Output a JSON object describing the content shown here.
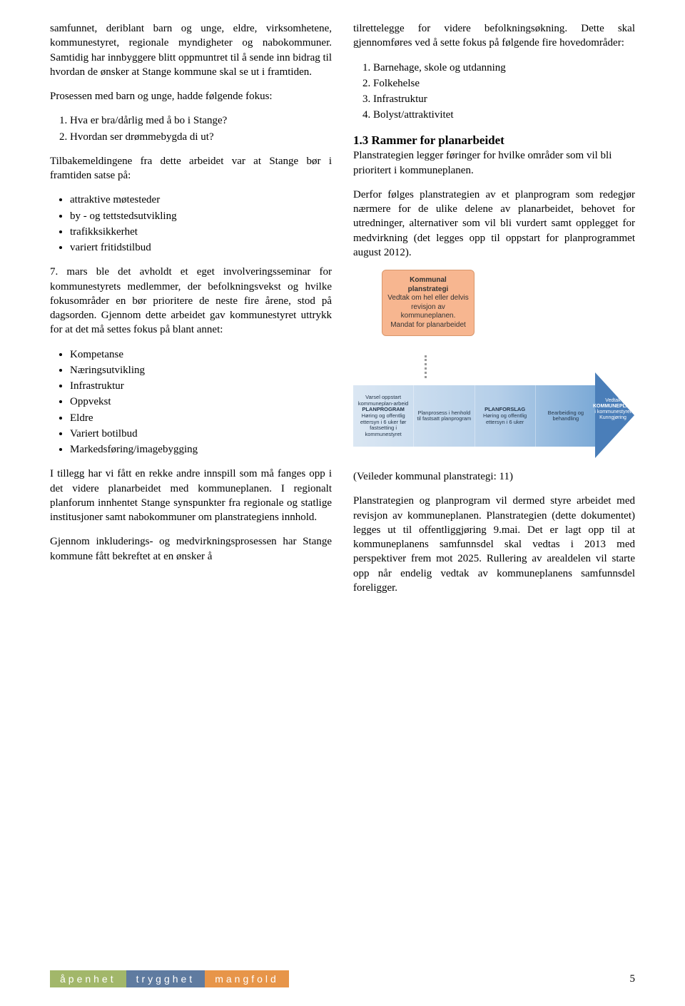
{
  "left": {
    "p1": "samfunnet, deriblant barn og unge, eldre, virksomhetene, kommunestyret, regionale myndigheter og nabokommuner. Samtidig har innbyggere blitt oppmuntret til å sende inn bidrag til hvordan de ønsker at Stange kommune skal se ut i framtiden.",
    "p2": "Prosessen med barn og unge, hadde følgende fokus:",
    "ol1": [
      "Hva er bra/dårlig med å bo i Stange?",
      "Hvordan ser drømmebygda di ut?"
    ],
    "p3": "Tilbakemeldingene fra dette arbeidet var at Stange bør i framtiden satse på:",
    "ul1": [
      "attraktive møtesteder",
      "by - og tettstedsutvikling",
      "trafikksikkerhet",
      "variert fritidstilbud"
    ],
    "p4": "7. mars ble det avholdt et eget involveringsseminar for kommunestyrets medlemmer, der befolkningsvekst og hvilke fokusområder en bør prioritere de neste fire årene, stod på dagsorden. Gjennom dette arbeidet gav kommunestyret uttrykk for at det må settes fokus på blant annet:",
    "ul2": [
      "Kompetanse",
      "Næringsutvikling",
      "Infrastruktur",
      "Oppvekst",
      "Eldre",
      "Variert botilbud",
      "Markedsføring/imagebygging"
    ],
    "p5": "I tillegg har vi fått en rekke andre innspill som må fanges opp i det videre planarbeidet med kommuneplanen. I regionalt planforum innhentet Stange synspunkter fra regionale og statlige institusjoner samt nabokommuner om planstrategiens innhold.",
    "p6": "Gjennom inkluderings- og medvirkningsprosessen har Stange kommune fått bekreftet at en ønsker å"
  },
  "right": {
    "p1": "tilrettelegge for videre befolkningsøkning. Dette skal gjennomføres ved å sette fokus på følgende fire hovedområder:",
    "ol1": [
      "Barnehage, skole og utdanning",
      "Folkehelse",
      "Infrastruktur",
      "Bolyst/attraktivitet"
    ],
    "heading": "1.3 Rammer for planarbeidet",
    "p2": "Planstrategien legger føringer for hvilke områder som vil bli prioritert i kommuneplanen.",
    "p3": "Derfor følges planstrategien av et planprogram som redegjør nærmere for de ulike delene av planarbeidet, behovet for utredninger, alternativer som vil bli vurdert samt opplegget for medvirkning (det legges opp til oppstart for planprogrammet august 2012).",
    "caption": "(Veileder kommunal planstrategi: 11)",
    "p4": "Planstrategien og planprogram vil dermed styre arbeidet med revisjon av kommuneplanen. Planstrategien (dette dokumentet) legges ut til offentliggjøring 9.mai. Det er lagt opp til at kommuneplanens samfunnsdel skal vedtas i 2013 med perspektiver frem mot 2025. Rullering av arealdelen vil starte opp når endelig vedtak av kommuneplanens samfunnsdel foreligger."
  },
  "diagram": {
    "box1_l1": "Kommunal",
    "box1_l2": "planstrategi",
    "box1_l3": "Vedtak om hel eller delvis revisjon av kommuneplanen.",
    "box1_l4": "Mandat for planarbeidet",
    "arrow": {
      "c1_l1": "Varsel oppstart kommuneplan-arbeid",
      "c1_l2": "PLANPROGRAM",
      "c1_l3": "Høring og offentlig ettersyn i 6 uker før fastsetting i kommunestyret",
      "c2_l1": "Planprosess i henhold til fastsatt planprogram",
      "c3_l1": "PLANFORSLAG",
      "c3_l2": "Høring og offentlig ettersyn i 6 uker",
      "c4_l1": "Bearbeiding og behandling",
      "head_l1": "Vedtak",
      "head_l2": "KOMMUNEPLAN",
      "head_l3": "i kommunestyret",
      "head_l4": "Kunngjøring"
    },
    "colors": {
      "box1_bg": "#f7b690",
      "arrow_start": "#dbe7f3",
      "arrow_end": "#4a7eb9"
    }
  },
  "footer": {
    "badges": [
      "åpenhet",
      "trygghet",
      "mangfold"
    ],
    "badge_colors": [
      "#a2b76a",
      "#5f7ba0",
      "#e79549"
    ],
    "page": "5"
  }
}
